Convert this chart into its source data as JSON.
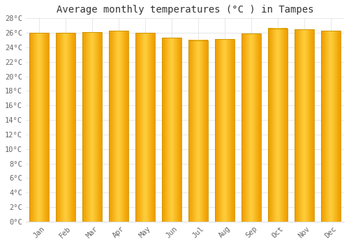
{
  "title": "Average monthly temperatures (°C ) in Tampes",
  "months": [
    "Jan",
    "Feb",
    "Mar",
    "Apr",
    "May",
    "Jun",
    "Jul",
    "Aug",
    "Sep",
    "Oct",
    "Nov",
    "Dec"
  ],
  "temperatures": [
    26.0,
    26.0,
    26.1,
    26.3,
    26.0,
    25.3,
    25.0,
    25.1,
    25.9,
    26.6,
    26.5,
    26.3
  ],
  "bar_color_center": "#FFD040",
  "bar_color_edge": "#F0A000",
  "background_color": "#FFFFFF",
  "grid_color": "#DDDDDD",
  "ylim": [
    0,
    28
  ],
  "ytick_step": 2,
  "title_fontsize": 10,
  "tick_fontsize": 7.5,
  "tick_font_family": "monospace",
  "bar_width": 0.72
}
